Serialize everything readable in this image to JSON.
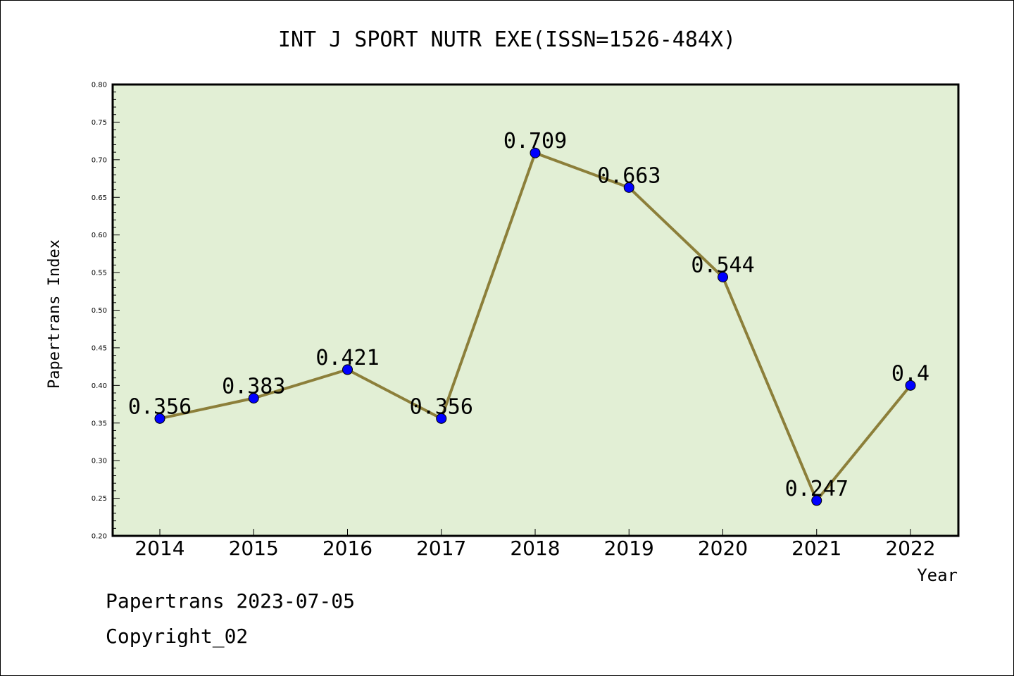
{
  "chart_data": {
    "type": "line",
    "title": "INT J SPORT NUTR EXE(ISSN=1526-484X)",
    "xlabel": "Year",
    "ylabel": "Papertrans Index",
    "categories": [
      "2014",
      "2015",
      "2016",
      "2017",
      "2018",
      "2019",
      "2020",
      "2021",
      "2022"
    ],
    "values": [
      0.356,
      0.383,
      0.421,
      0.356,
      0.709,
      0.663,
      0.544,
      0.247,
      0.4
    ],
    "data_labels": [
      "0.356",
      "0.383",
      "0.421",
      "0.356",
      "0.709",
      "0.663",
      "0.544",
      "0.247",
      "0.4"
    ],
    "ylim": [
      0.2,
      0.8
    ],
    "yticks": [
      "0.20",
      "0.25",
      "0.30",
      "0.35",
      "0.40",
      "0.45",
      "0.50",
      "0.55",
      "0.60",
      "0.65",
      "0.70",
      "0.75",
      "0.80"
    ],
    "grid": false,
    "colors": {
      "plot_background": "#e2efd5",
      "line": "#8c7f3a",
      "marker": "#0000ff"
    }
  },
  "footer": {
    "line1": "Papertrans 2023-07-05",
    "line2": "Copyright_02"
  }
}
